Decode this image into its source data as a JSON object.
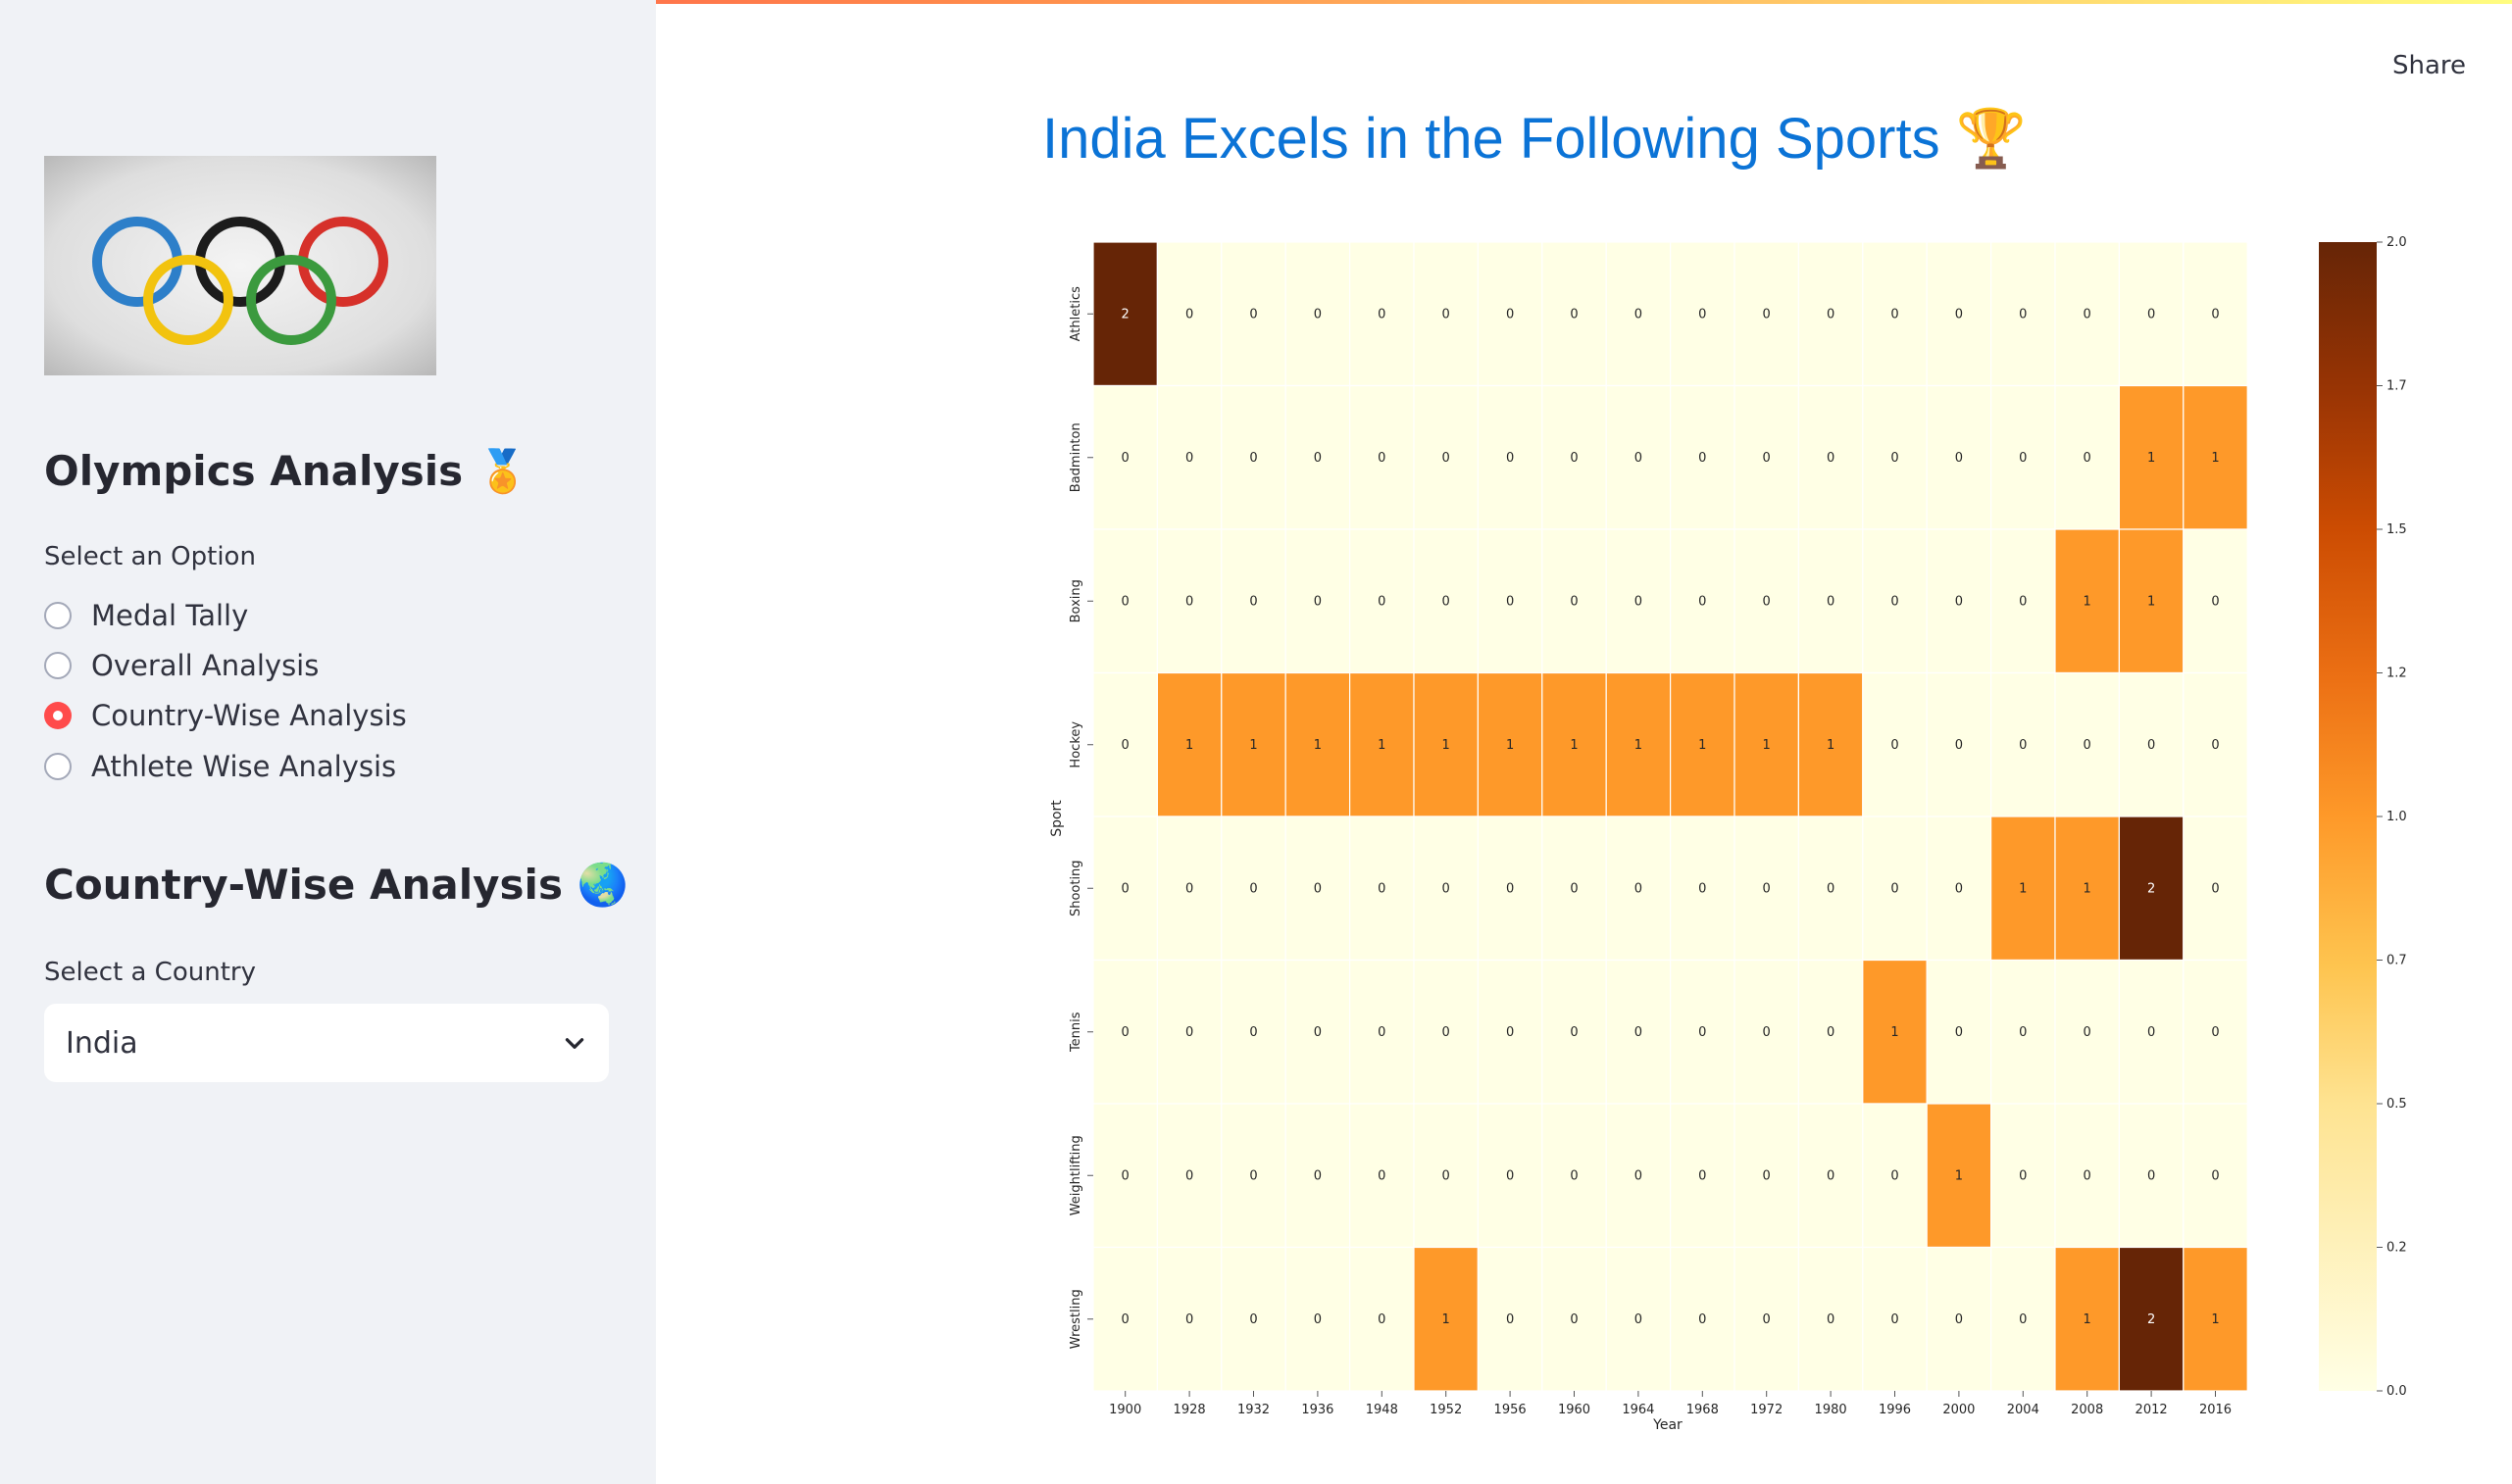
{
  "sidebar": {
    "app_title": "Olympics Analysis 🏅",
    "option_label": "Select an Option",
    "options": [
      {
        "label": "Medal Tally",
        "selected": false
      },
      {
        "label": "Overall Analysis",
        "selected": false
      },
      {
        "label": "Country-Wise Analysis",
        "selected": true
      },
      {
        "label": "Athlete Wise Analysis",
        "selected": false
      }
    ],
    "section_title": "Country-Wise Analysis 🌏",
    "country_label": "Select a Country",
    "country_value": "India"
  },
  "header": {
    "share_label": "Share"
  },
  "main": {
    "title": "India Excels in the Following Sports 🏆"
  },
  "colors": {
    "accent": "#ff4b4b",
    "title": "#0b73d6",
    "sidebar_bg": "#f0f2f6"
  },
  "chart_data": {
    "type": "heatmap",
    "xlabel": "Year",
    "ylabel": "Sport",
    "x": [
      "1900",
      "1928",
      "1932",
      "1936",
      "1948",
      "1952",
      "1956",
      "1960",
      "1964",
      "1968",
      "1972",
      "1980",
      "1996",
      "2000",
      "2004",
      "2008",
      "2012",
      "2016"
    ],
    "y": [
      "Athletics",
      "Badminton",
      "Boxing",
      "Hockey",
      "Shooting",
      "Tennis",
      "Weightlifting",
      "Wrestling"
    ],
    "values": [
      [
        2,
        0,
        0,
        0,
        0,
        0,
        0,
        0,
        0,
        0,
        0,
        0,
        0,
        0,
        0,
        0,
        0,
        0
      ],
      [
        0,
        0,
        0,
        0,
        0,
        0,
        0,
        0,
        0,
        0,
        0,
        0,
        0,
        0,
        0,
        0,
        1,
        1
      ],
      [
        0,
        0,
        0,
        0,
        0,
        0,
        0,
        0,
        0,
        0,
        0,
        0,
        0,
        0,
        0,
        1,
        1,
        0
      ],
      [
        0,
        1,
        1,
        1,
        1,
        1,
        1,
        1,
        1,
        1,
        1,
        1,
        0,
        0,
        0,
        0,
        0,
        0
      ],
      [
        0,
        0,
        0,
        0,
        0,
        0,
        0,
        0,
        0,
        0,
        0,
        0,
        0,
        0,
        1,
        1,
        2,
        0
      ],
      [
        0,
        0,
        0,
        0,
        0,
        0,
        0,
        0,
        0,
        0,
        0,
        0,
        1,
        0,
        0,
        0,
        0,
        0
      ],
      [
        0,
        0,
        0,
        0,
        0,
        0,
        0,
        0,
        0,
        0,
        0,
        0,
        0,
        1,
        0,
        0,
        0,
        0
      ],
      [
        0,
        0,
        0,
        0,
        0,
        1,
        0,
        0,
        0,
        0,
        0,
        0,
        0,
        0,
        0,
        1,
        2,
        1
      ]
    ],
    "colorbar_range": [
      0,
      2
    ],
    "colorbar_ticks": [
      "0.00",
      "0.25",
      "0.50",
      "0.75",
      "1.00",
      "1.25",
      "1.50",
      "1.75",
      "2.00"
    ],
    "colormap": "YlOrBr",
    "annotated": true
  }
}
